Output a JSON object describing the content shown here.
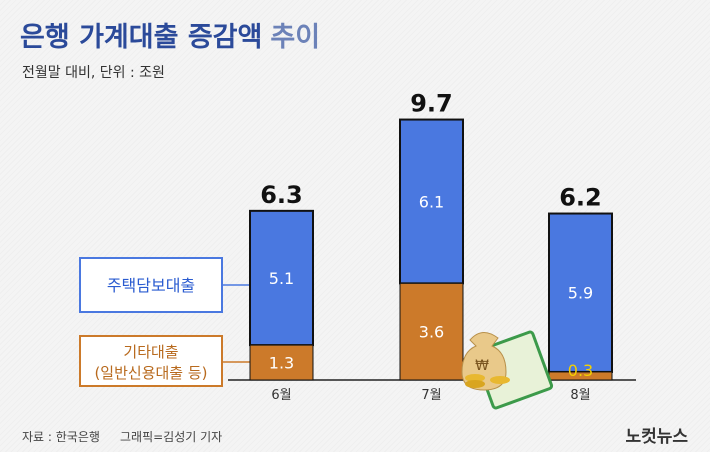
{
  "header": {
    "title_main": "은행 가계대출 증감액",
    "title_tail": "추이",
    "subtitle": "전월말 대비, 단위 : 조원"
  },
  "footer": {
    "source": "자료 : 한국은행",
    "credit": "그래픽=김성기 기자",
    "logo": "노컷뉴스"
  },
  "colors": {
    "mortgage": "#4a78e0",
    "other": "#cc7a2a",
    "title": "#2b4a9a",
    "title_tail": "#6c82b8"
  },
  "chart_data": {
    "type": "bar",
    "stacked": true,
    "categories": [
      "6월",
      "7월",
      "8월"
    ],
    "series": [
      {
        "name": "주택담보대출",
        "values": [
          5.1,
          6.1,
          5.9
        ]
      },
      {
        "name": "기타대출 (일반신용대출 등)",
        "values": [
          1.3,
          3.6,
          0.3
        ]
      }
    ],
    "totals": [
      6.3,
      9.7,
      6.2
    ],
    "total_labels": [
      "6.3",
      "9.7",
      "6.2"
    ],
    "segment_labels": [
      [
        "5.1",
        "1.3"
      ],
      [
        "6.1",
        "3.6"
      ],
      [
        "5.9",
        "0.3"
      ]
    ],
    "legend": {
      "mortgage": "주택담보대출",
      "other_line1": "기타대출",
      "other_line2": "(일반신용대출 등)",
      "placement": "left"
    },
    "decoration_icon": "money-bag-coins-icon"
  }
}
